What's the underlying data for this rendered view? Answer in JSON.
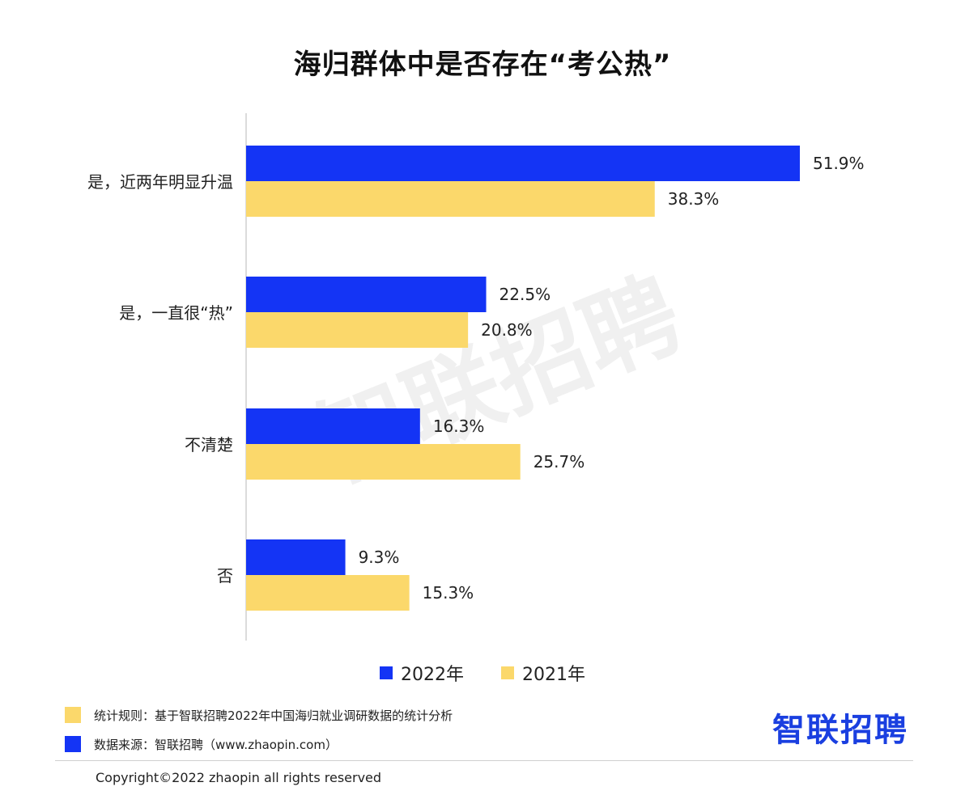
{
  "title": "海归群体中是否存在“考公热”",
  "watermark": "智联招聘",
  "colors": {
    "series_2022": "#1434f5",
    "series_2021": "#fbd86b",
    "axis": "#cfcfcf",
    "brand": "#1a3fe0"
  },
  "chart_data": {
    "type": "bar",
    "orientation": "horizontal",
    "title": "海归群体中是否存在“考公热”",
    "categories": [
      "是，近两年明显升温",
      "是，一直很“热”",
      "不清楚",
      "否"
    ],
    "series": [
      {
        "name": "2022年",
        "values": [
          51.9,
          22.5,
          16.3,
          9.3
        ],
        "labels": [
          "51.9%",
          "22.5%",
          "16.3%",
          "9.3%"
        ],
        "color": "#1434f5"
      },
      {
        "name": "2021年",
        "values": [
          38.3,
          20.8,
          25.7,
          15.3
        ],
        "labels": [
          "38.3%",
          "20.8%",
          "25.7%",
          "15.3%"
        ],
        "color": "#fbd86b"
      }
    ],
    "xlim": [
      0,
      60
    ],
    "grid": false,
    "legend_position": "bottom"
  },
  "legend": [
    {
      "label": "2022年",
      "color": "#1434f5"
    },
    {
      "label": "2021年",
      "color": "#fbd86b"
    }
  ],
  "notes": [
    {
      "text": "统计规则：基于智联招聘2022年中国海归就业调研数据的统计分析",
      "color": "#fbd86b"
    },
    {
      "text": "数据来源：智联招聘（www.zhaopin.com）",
      "color": "#1434f5"
    }
  ],
  "brand": "智联招聘",
  "copyright": "Copyright©2022 zhaopin all rights reserved"
}
